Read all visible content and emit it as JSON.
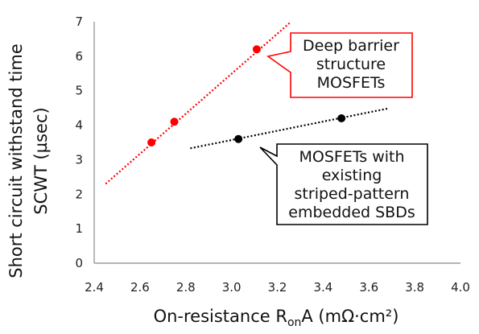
{
  "chart_data": {
    "type": "scatter",
    "title": "",
    "xlabel_parts": [
      "On-resistance R",
      "on",
      "A  (mΩ·cm²)"
    ],
    "ylabel_lines": [
      "Short circuit withstand time",
      "SCWT  (µsec)"
    ],
    "xlim": [
      2.4,
      4.0
    ],
    "ylim": [
      0,
      7
    ],
    "x_ticks": [
      "2.4",
      "2.6",
      "2.8",
      "3.0",
      "3.2",
      "3.4",
      "3.6",
      "3.8",
      "4.0"
    ],
    "y_ticks": [
      "0",
      "1",
      "2",
      "3",
      "4",
      "5",
      "6",
      "7"
    ],
    "grid": false,
    "series": [
      {
        "name": "Deep barrier structure MOSFETs",
        "color": "#ff0000",
        "points": [
          [
            2.65,
            3.5
          ],
          [
            2.75,
            4.1
          ],
          [
            3.11,
            6.2
          ]
        ],
        "trendline": [
          [
            2.45,
            2.3
          ],
          [
            3.26,
            7.0
          ]
        ]
      },
      {
        "name": "MOSFETs with existing striped-pattern embedded SBDs",
        "color": "#000000",
        "points": [
          [
            3.03,
            3.6
          ],
          [
            3.48,
            4.2
          ]
        ],
        "trendline": [
          [
            2.82,
            3.33
          ],
          [
            3.68,
            4.48
          ]
        ]
      }
    ],
    "annotations": [
      {
        "lines": [
          "Deep barrier",
          "structure",
          "MOSFETs"
        ],
        "border": "#ff0000"
      },
      {
        "lines": [
          "MOSFETs with",
          "existing",
          "striped-pattern",
          "embedded SBDs"
        ],
        "border": "#000000"
      }
    ]
  }
}
